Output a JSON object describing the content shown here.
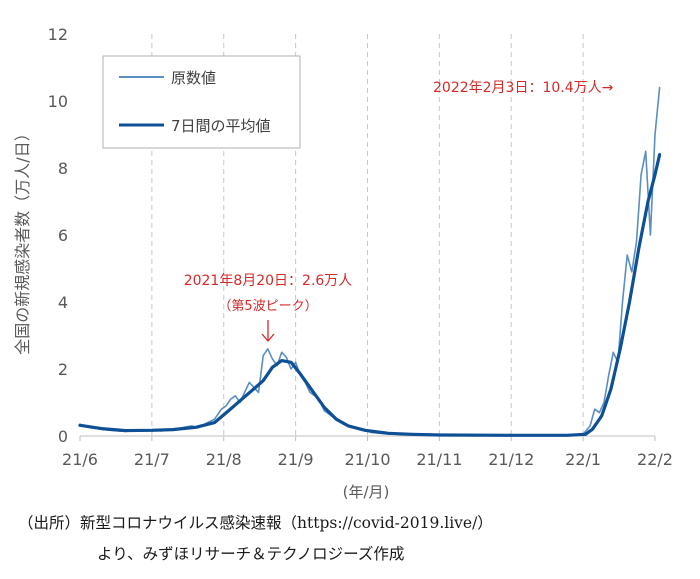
{
  "chart_data": {
    "type": "line",
    "xlabel": "(年/月)",
    "ylabel": "全国の新規感染者数（万人/日）",
    "ylim": [
      0,
      12
    ],
    "yticks": [
      0,
      2,
      4,
      6,
      8,
      10,
      12
    ],
    "xlim": [
      "2021-06-01",
      "2022-02-01"
    ],
    "xticks": [
      {
        "date": "2021-06-01",
        "label": "21/6"
      },
      {
        "date": "2021-07-01",
        "label": "21/7"
      },
      {
        "date": "2021-08-01",
        "label": "21/8"
      },
      {
        "date": "2021-09-01",
        "label": "21/9"
      },
      {
        "date": "2021-10-01",
        "label": "21/10"
      },
      {
        "date": "2021-11-01",
        "label": "21/11"
      },
      {
        "date": "2021-12-01",
        "label": "21/12"
      },
      {
        "date": "2022-01-01",
        "label": "22/1"
      },
      {
        "date": "2022-02-01",
        "label": "22/2"
      }
    ],
    "grid": "vertical dashed",
    "legend": "top-left",
    "series": [
      {
        "name": "原数値",
        "color": "#5b8ec1",
        "points": [
          [
            "2021-06-01",
            0.35
          ],
          [
            "2021-06-05",
            0.25
          ],
          [
            "2021-06-10",
            0.2
          ],
          [
            "2021-06-15",
            0.16
          ],
          [
            "2021-06-20",
            0.14
          ],
          [
            "2021-06-25",
            0.16
          ],
          [
            "2021-07-01",
            0.18
          ],
          [
            "2021-07-05",
            0.15
          ],
          [
            "2021-07-10",
            0.2
          ],
          [
            "2021-07-14",
            0.25
          ],
          [
            "2021-07-18",
            0.3
          ],
          [
            "2021-07-21",
            0.25
          ],
          [
            "2021-07-25",
            0.4
          ],
          [
            "2021-07-28",
            0.5
          ],
          [
            "2021-07-31",
            0.8
          ],
          [
            "2021-08-02",
            0.9
          ],
          [
            "2021-08-04",
            1.1
          ],
          [
            "2021-08-06",
            1.2
          ],
          [
            "2021-08-08",
            1.0
          ],
          [
            "2021-08-10",
            1.3
          ],
          [
            "2021-08-12",
            1.6
          ],
          [
            "2021-08-14",
            1.45
          ],
          [
            "2021-08-16",
            1.3
          ],
          [
            "2021-08-18",
            2.4
          ],
          [
            "2021-08-20",
            2.6
          ],
          [
            "2021-08-22",
            2.3
          ],
          [
            "2021-08-24",
            2.1
          ],
          [
            "2021-08-26",
            2.5
          ],
          [
            "2021-08-28",
            2.35
          ],
          [
            "2021-08-30",
            2.0
          ],
          [
            "2021-09-01",
            2.2
          ],
          [
            "2021-09-03",
            1.8
          ],
          [
            "2021-09-05",
            1.6
          ],
          [
            "2021-09-07",
            1.3
          ],
          [
            "2021-09-09",
            1.2
          ],
          [
            "2021-09-11",
            1.05
          ],
          [
            "2021-09-13",
            0.75
          ],
          [
            "2021-09-15",
            0.65
          ],
          [
            "2021-09-17",
            0.55
          ],
          [
            "2021-09-19",
            0.45
          ],
          [
            "2021-09-21",
            0.35
          ],
          [
            "2021-09-23",
            0.3
          ],
          [
            "2021-09-26",
            0.25
          ],
          [
            "2021-09-29",
            0.18
          ],
          [
            "2021-10-03",
            0.1
          ],
          [
            "2021-10-10",
            0.06
          ],
          [
            "2021-10-20",
            0.04
          ],
          [
            "2021-11-01",
            0.03
          ],
          [
            "2021-11-15",
            0.02
          ],
          [
            "2021-12-01",
            0.02
          ],
          [
            "2021-12-15",
            0.02
          ],
          [
            "2021-12-25",
            0.03
          ],
          [
            "2022-01-01",
            0.05
          ],
          [
            "2022-01-04",
            0.3
          ],
          [
            "2022-01-06",
            0.8
          ],
          [
            "2022-01-08",
            0.7
          ],
          [
            "2022-01-10",
            1.0
          ],
          [
            "2022-01-12",
            1.8
          ],
          [
            "2022-01-14",
            2.5
          ],
          [
            "2022-01-16",
            2.2
          ],
          [
            "2022-01-18",
            4.0
          ],
          [
            "2022-01-20",
            5.4
          ],
          [
            "2022-01-22",
            4.9
          ],
          [
            "2022-01-24",
            5.8
          ],
          [
            "2022-01-26",
            7.8
          ],
          [
            "2022-01-28",
            8.5
          ],
          [
            "2022-01-30",
            6.0
          ],
          [
            "2022-02-01",
            9.0
          ],
          [
            "2022-02-03",
            10.4
          ]
        ]
      },
      {
        "name": "7日間の平均値",
        "color": "#0e4f95",
        "points": [
          [
            "2021-06-01",
            0.32
          ],
          [
            "2021-06-10",
            0.22
          ],
          [
            "2021-06-20",
            0.16
          ],
          [
            "2021-07-01",
            0.17
          ],
          [
            "2021-07-10",
            0.19
          ],
          [
            "2021-07-20",
            0.26
          ],
          [
            "2021-07-28",
            0.4
          ],
          [
            "2021-08-03",
            0.75
          ],
          [
            "2021-08-08",
            1.05
          ],
          [
            "2021-08-13",
            1.35
          ],
          [
            "2021-08-18",
            1.65
          ],
          [
            "2021-08-22",
            2.05
          ],
          [
            "2021-08-26",
            2.25
          ],
          [
            "2021-08-30",
            2.2
          ],
          [
            "2021-09-03",
            1.85
          ],
          [
            "2021-09-08",
            1.35
          ],
          [
            "2021-09-13",
            0.85
          ],
          [
            "2021-09-18",
            0.5
          ],
          [
            "2021-09-23",
            0.3
          ],
          [
            "2021-09-30",
            0.17
          ],
          [
            "2021-10-10",
            0.08
          ],
          [
            "2021-10-20",
            0.05
          ],
          [
            "2021-11-01",
            0.03
          ],
          [
            "2021-12-01",
            0.02
          ],
          [
            "2021-12-25",
            0.02
          ],
          [
            "2022-01-02",
            0.05
          ],
          [
            "2022-01-05",
            0.2
          ],
          [
            "2022-01-09",
            0.6
          ],
          [
            "2022-01-13",
            1.4
          ],
          [
            "2022-01-17",
            2.6
          ],
          [
            "2022-01-21",
            4.0
          ],
          [
            "2022-01-25",
            5.6
          ],
          [
            "2022-01-29",
            7.0
          ],
          [
            "2022-02-01",
            7.8
          ],
          [
            "2022-02-03",
            8.4
          ]
        ]
      }
    ],
    "annotations": [
      {
        "text": "2022年2月3日：10.4万人→",
        "color": "#d42a2a"
      },
      {
        "text": "2021年8月20日：2.6万人",
        "color": "#d42a2a"
      },
      {
        "text": "（第5波ピーク）",
        "color": "#d42a2a"
      }
    ]
  },
  "source_line1": "（出所）新型コロナウイルス感染速報（https://covid-2019.live/）",
  "source_line2": "より、みずほリサーチ＆テクノロジーズ作成"
}
